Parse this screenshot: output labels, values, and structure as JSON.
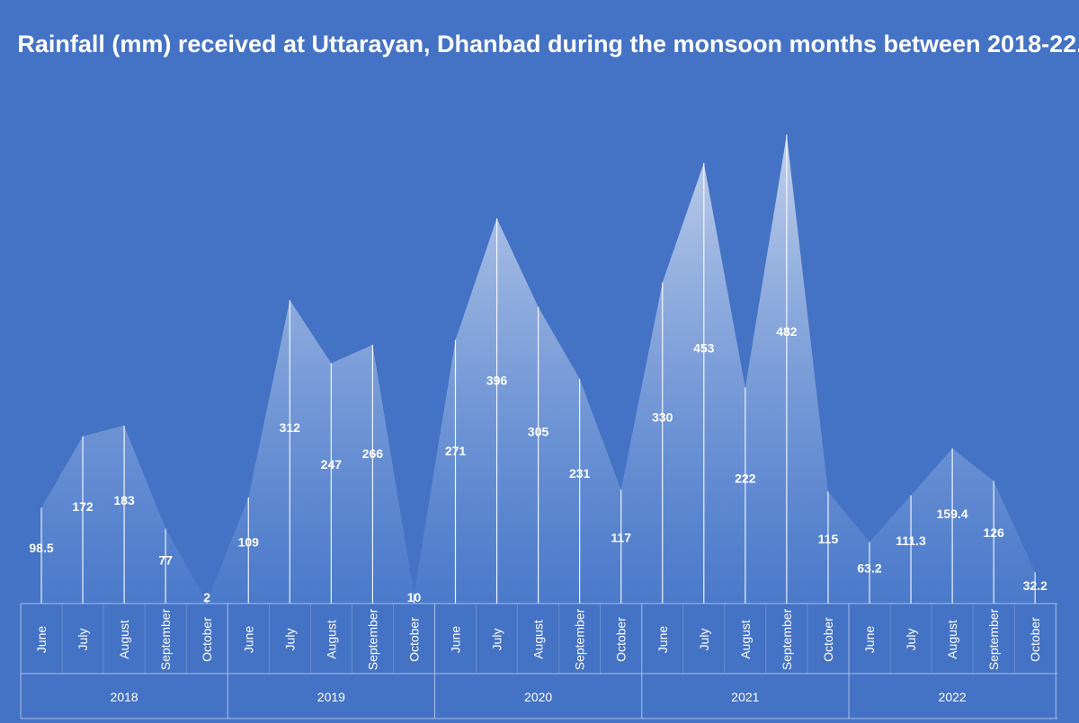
{
  "chart_data": {
    "type": "area",
    "title": "Rainfall (mm) received at Uttarayan, Dhanbad during the monsoon months between 2018-22.",
    "xlabel": "",
    "ylabel": "",
    "ylim": [
      0,
      520
    ],
    "grid": false,
    "legend": "none",
    "colors": {
      "background": "#4472c4",
      "area_top": "#c9d6ee",
      "area_bottom": "#4f7fcf",
      "axis": "#a9bfe6",
      "text": "#ffffff"
    },
    "groups": [
      {
        "year": "2018",
        "months": [
          "June",
          "July",
          "August",
          "September",
          "October"
        ],
        "values": [
          98.5,
          172,
          183,
          77,
          2
        ]
      },
      {
        "year": "2019",
        "months": [
          "June",
          "July",
          "August",
          "September",
          "October"
        ],
        "values": [
          109,
          312,
          247,
          266,
          10
        ]
      },
      {
        "year": "2020",
        "months": [
          "June",
          "July",
          "August",
          "September",
          "October"
        ],
        "values": [
          271,
          396,
          305,
          231,
          117
        ]
      },
      {
        "year": "2021",
        "months": [
          "June",
          "July",
          "August",
          "September",
          "October"
        ],
        "values": [
          330,
          453,
          222,
          482,
          115
        ]
      },
      {
        "year": "2022",
        "months": [
          "June",
          "July",
          "August",
          "September",
          "October"
        ],
        "values": [
          63.2,
          111.3,
          159.4,
          126,
          32.2
        ]
      }
    ],
    "value_labels": [
      [
        "98.5",
        "172",
        "183",
        "77",
        "2"
      ],
      [
        "109",
        "312",
        "247",
        "266",
        "10"
      ],
      [
        "271",
        "396",
        "305",
        "231",
        "117"
      ],
      [
        "330",
        "453",
        "222",
        "482",
        "115"
      ],
      [
        "63.2",
        "111.3",
        "159.4",
        "126",
        "32.2"
      ]
    ]
  }
}
